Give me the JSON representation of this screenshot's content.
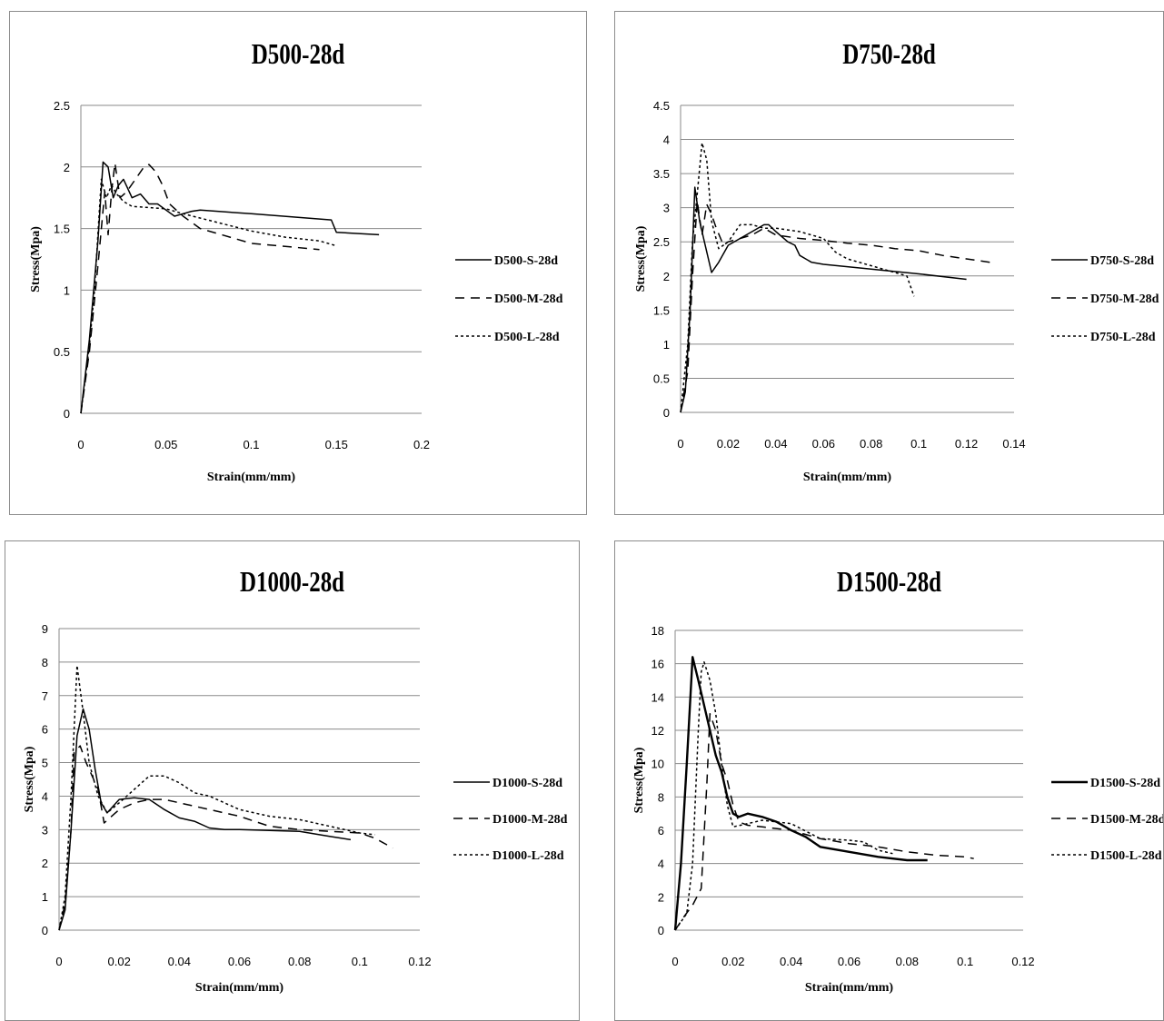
{
  "chart_data": [
    {
      "type": "line",
      "title": "D500-28d",
      "xlabel": "Strain(mm/mm)",
      "ylabel": "Stress(Mpa)",
      "xlim": [
        0,
        0.2
      ],
      "ylim": [
        0,
        2.5
      ],
      "xticks": [
        "0",
        "0.05",
        "0.1",
        "0.15",
        "0.2"
      ],
      "yticks": [
        "0",
        "0.5",
        "1",
        "1.5",
        "2",
        "2.5"
      ],
      "grid": "horizontal",
      "legend": "right",
      "series": [
        {
          "name": "D500-S-28d",
          "dash": "solid",
          "width": 1.5,
          "x": [
            0,
            0.005,
            0.01,
            0.013,
            0.016,
            0.019,
            0.022,
            0.025,
            0.03,
            0.035,
            0.04,
            0.045,
            0.05,
            0.055,
            0.06,
            0.065,
            0.07,
            0.1,
            0.147,
            0.15,
            0.175
          ],
          "y": [
            0,
            0.6,
            1.4,
            2.04,
            2.0,
            1.75,
            1.85,
            1.9,
            1.75,
            1.78,
            1.7,
            1.7,
            1.65,
            1.6,
            1.62,
            1.64,
            1.65,
            1.62,
            1.57,
            1.47,
            1.45
          ]
        },
        {
          "name": "D500-M-28d",
          "dash": "10,7",
          "width": 1.5,
          "x": [
            0,
            0.005,
            0.01,
            0.014,
            0.016,
            0.018,
            0.02,
            0.023,
            0.027,
            0.032,
            0.037,
            0.04,
            0.044,
            0.048,
            0.052,
            0.06,
            0.065,
            0.07,
            0.08,
            0.1,
            0.14
          ],
          "y": [
            0,
            0.5,
            1.2,
            1.8,
            1.45,
            1.8,
            2.03,
            1.75,
            1.8,
            1.9,
            2.0,
            2.02,
            1.96,
            1.85,
            1.7,
            1.6,
            1.55,
            1.5,
            1.46,
            1.38,
            1.33
          ]
        },
        {
          "name": "D500-L-28d",
          "dash": "3,3",
          "width": 1.5,
          "x": [
            0,
            0.005,
            0.008,
            0.012,
            0.015,
            0.018,
            0.021,
            0.025,
            0.03,
            0.04,
            0.05,
            0.06,
            0.08,
            0.1,
            0.12,
            0.14,
            0.15
          ],
          "y": [
            0,
            0.55,
            1.0,
            1.9,
            1.75,
            1.85,
            1.78,
            1.72,
            1.68,
            1.67,
            1.66,
            1.62,
            1.55,
            1.48,
            1.43,
            1.4,
            1.36
          ]
        }
      ]
    },
    {
      "type": "line",
      "title": "D750-28d",
      "xlabel": "Strain(mm/mm)",
      "ylabel": "Stress(Mpa)",
      "xlim": [
        0,
        0.14
      ],
      "ylim": [
        0,
        4.5
      ],
      "xticks": [
        "0",
        "0.02",
        "0.04",
        "0.06",
        "0.08",
        "0.1",
        "0.12",
        "0.14"
      ],
      "yticks": [
        "0",
        "0.5",
        "1",
        "1.5",
        "2",
        "2.5",
        "3",
        "3.5",
        "4",
        "4.5"
      ],
      "grid": "horizontal",
      "legend": "right",
      "series": [
        {
          "name": "D750-S-28d",
          "dash": "solid",
          "width": 1.5,
          "x": [
            0,
            0.002,
            0.004,
            0.006,
            0.008,
            0.01,
            0.013,
            0.016,
            0.02,
            0.025,
            0.03,
            0.035,
            0.037,
            0.04,
            0.045,
            0.048,
            0.05,
            0.055,
            0.06,
            0.08,
            0.1,
            0.12
          ],
          "y": [
            0,
            0.3,
            1.5,
            3.3,
            2.8,
            2.5,
            2.05,
            2.2,
            2.45,
            2.55,
            2.65,
            2.75,
            2.75,
            2.65,
            2.5,
            2.45,
            2.3,
            2.2,
            2.17,
            2.1,
            2.03,
            1.95
          ]
        },
        {
          "name": "D750-M-28d",
          "dash": "10,7",
          "width": 1.5,
          "x": [
            0,
            0.003,
            0.005,
            0.007,
            0.009,
            0.011,
            0.013,
            0.015,
            0.018,
            0.02,
            0.025,
            0.03,
            0.035,
            0.04,
            0.05,
            0.06,
            0.07,
            0.08,
            0.09,
            0.1,
            0.11,
            0.12,
            0.13
          ],
          "y": [
            0,
            0.6,
            2.0,
            3.1,
            2.6,
            3.05,
            2.9,
            2.7,
            2.45,
            2.5,
            2.55,
            2.6,
            2.7,
            2.6,
            2.55,
            2.52,
            2.48,
            2.45,
            2.4,
            2.37,
            2.3,
            2.25,
            2.2
          ]
        },
        {
          "name": "D750-L-28d",
          "dash": "3,3",
          "width": 1.5,
          "x": [
            0,
            0.003,
            0.005,
            0.007,
            0.009,
            0.011,
            0.013,
            0.016,
            0.02,
            0.025,
            0.03,
            0.035,
            0.04,
            0.05,
            0.06,
            0.065,
            0.07,
            0.08,
            0.09,
            0.095,
            0.098
          ],
          "y": [
            0,
            1.0,
            2.5,
            3.2,
            3.95,
            3.7,
            2.8,
            2.4,
            2.5,
            2.75,
            2.75,
            2.7,
            2.7,
            2.65,
            2.55,
            2.35,
            2.25,
            2.15,
            2.05,
            2.0,
            1.7
          ]
        }
      ]
    },
    {
      "type": "line",
      "title": "D1000-28d",
      "xlabel": "Strain(mm/mm)",
      "ylabel": "Stress(Mpa)",
      "xlim": [
        0,
        0.12
      ],
      "ylim": [
        0,
        9
      ],
      "xticks": [
        "0",
        "0.02",
        "0.04",
        "0.06",
        "0.08",
        "0.1",
        "0.12"
      ],
      "yticks": [
        "0",
        "1",
        "2",
        "3",
        "4",
        "5",
        "6",
        "7",
        "8",
        "9"
      ],
      "grid": "horizontal",
      "legend": "right",
      "series": [
        {
          "name": "D1000-S-28d",
          "dash": "solid",
          "width": 1.5,
          "x": [
            0,
            0.002,
            0.004,
            0.006,
            0.008,
            0.01,
            0.012,
            0.014,
            0.016,
            0.02,
            0.025,
            0.03,
            0.035,
            0.04,
            0.045,
            0.05,
            0.055,
            0.06,
            0.08,
            0.09,
            0.097
          ],
          "y": [
            0,
            0.6,
            3.0,
            5.8,
            6.6,
            6.0,
            4.8,
            3.8,
            3.5,
            3.9,
            3.95,
            3.9,
            3.6,
            3.35,
            3.25,
            3.05,
            3.0,
            3.0,
            2.95,
            2.8,
            2.7
          ]
        },
        {
          "name": "D1000-M-28d",
          "dash": "10,7",
          "width": 1.5,
          "x": [
            0,
            0.002,
            0.004,
            0.005,
            0.007,
            0.009,
            0.011,
            0.013,
            0.015,
            0.02,
            0.025,
            0.03,
            0.035,
            0.04,
            0.05,
            0.06,
            0.07,
            0.08,
            0.09,
            0.1,
            0.105,
            0.111
          ],
          "y": [
            0,
            0.8,
            3.0,
            5.3,
            5.5,
            5.0,
            4.6,
            4.2,
            3.2,
            3.6,
            3.8,
            3.9,
            3.9,
            3.8,
            3.6,
            3.4,
            3.1,
            3.0,
            2.95,
            2.9,
            2.75,
            2.45
          ]
        },
        {
          "name": "D1000-L-28d",
          "dash": "3,3",
          "width": 1.5,
          "x": [
            0,
            0.002,
            0.004,
            0.006,
            0.008,
            0.01,
            0.013,
            0.016,
            0.02,
            0.025,
            0.03,
            0.035,
            0.04,
            0.045,
            0.05,
            0.06,
            0.07,
            0.08,
            0.09,
            0.1,
            0.105
          ],
          "y": [
            0,
            1.0,
            4.0,
            7.9,
            6.5,
            5.0,
            4.0,
            3.5,
            3.8,
            4.2,
            4.6,
            4.6,
            4.4,
            4.1,
            4.0,
            3.6,
            3.4,
            3.3,
            3.1,
            2.9,
            2.85
          ]
        }
      ]
    },
    {
      "type": "line",
      "title": "D1500-28d",
      "xlabel": "Strain(mm/mm)",
      "ylabel": "Stress(Mpa)",
      "xlim": [
        0,
        0.12
      ],
      "ylim": [
        0,
        18
      ],
      "xticks": [
        "0",
        "0.02",
        "0.04",
        "0.06",
        "0.08",
        "0.1",
        "0.12"
      ],
      "yticks": [
        "0",
        "2",
        "4",
        "6",
        "8",
        "10",
        "12",
        "14",
        "16",
        "18"
      ],
      "grid": "horizontal",
      "legend": "right",
      "series": [
        {
          "name": "D1500-S-28d",
          "dash": "solid",
          "width": 2.4,
          "x": [
            0,
            0.002,
            0.004,
            0.006,
            0.008,
            0.01,
            0.012,
            0.014,
            0.016,
            0.018,
            0.02,
            0.022,
            0.025,
            0.03,
            0.035,
            0.04,
            0.045,
            0.05,
            0.06,
            0.07,
            0.08,
            0.087
          ],
          "y": [
            0,
            4.0,
            10.0,
            16.4,
            15.0,
            13.5,
            12.0,
            10.5,
            9.5,
            8.0,
            7.0,
            6.8,
            7.0,
            6.8,
            6.5,
            6.0,
            5.6,
            5.0,
            4.7,
            4.4,
            4.2,
            4.2
          ]
        },
        {
          "name": "D1500-M-28d",
          "dash": "10,7",
          "width": 1.5,
          "x": [
            0,
            0.003,
            0.006,
            0.009,
            0.011,
            0.012,
            0.014,
            0.016,
            0.018,
            0.02,
            0.022,
            0.025,
            0.03,
            0.04,
            0.05,
            0.06,
            0.07,
            0.08,
            0.09,
            0.1,
            0.103
          ],
          "y": [
            0,
            0.8,
            1.5,
            2.5,
            9.0,
            13.0,
            12.0,
            10.0,
            9.0,
            7.5,
            6.5,
            6.3,
            6.2,
            6.0,
            5.5,
            5.2,
            5.0,
            4.7,
            4.5,
            4.4,
            4.3
          ]
        },
        {
          "name": "D1500-L-28d",
          "dash": "3,3",
          "width": 1.5,
          "x": [
            0,
            0.002,
            0.004,
            0.006,
            0.008,
            0.009,
            0.01,
            0.012,
            0.014,
            0.016,
            0.018,
            0.02,
            0.025,
            0.03,
            0.04,
            0.05,
            0.06,
            0.065,
            0.07,
            0.075
          ],
          "y": [
            0,
            0.5,
            1.0,
            4.0,
            12.0,
            15.5,
            16.1,
            15.0,
            13.0,
            10.0,
            7.5,
            6.2,
            6.4,
            6.6,
            6.4,
            5.5,
            5.4,
            5.3,
            4.8,
            4.6
          ]
        }
      ]
    }
  ]
}
